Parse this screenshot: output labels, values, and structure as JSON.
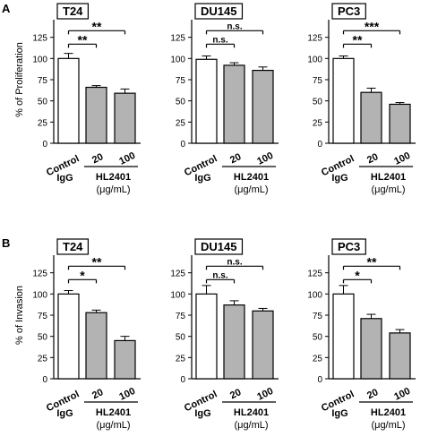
{
  "panel_labels": [
    "A",
    "B"
  ],
  "ylabels": [
    "% of Proliferation",
    "% of Invasion"
  ],
  "x_tick_labels": {
    "control": "Control",
    "igg": "IgG",
    "low": "20",
    "high": "100"
  },
  "group_label": "HL2401",
  "unit_label": "(μg/mL)",
  "chart_data": [
    {
      "type": "bar",
      "title": "T24",
      "categories": [
        "Control IgG",
        "20",
        "100"
      ],
      "values": [
        100,
        66,
        59
      ],
      "errors": [
        6,
        2,
        5
      ],
      "ylim": [
        0,
        150
      ],
      "yticks": [
        0,
        25,
        50,
        75,
        100,
        125
      ],
      "ylabel": "% of Proliferation",
      "significance": [
        {
          "from": "Control IgG",
          "to": "20",
          "label": "**"
        },
        {
          "from": "Control IgG",
          "to": "100",
          "label": "**"
        }
      ],
      "bar_colors": [
        "#ffffff",
        "#b3b3b3",
        "#b3b3b3"
      ]
    },
    {
      "type": "bar",
      "title": "DU145",
      "categories": [
        "Control IgG",
        "20",
        "100"
      ],
      "values": [
        99,
        92,
        86
      ],
      "errors": [
        4,
        3,
        4
      ],
      "ylim": [
        0,
        150
      ],
      "yticks": [
        0,
        25,
        50,
        75,
        100,
        125
      ],
      "ylabel": "",
      "significance": [
        {
          "from": "Control IgG",
          "to": "20",
          "label": "n.s."
        },
        {
          "from": "Control IgG",
          "to": "100",
          "label": "n.s."
        }
      ],
      "bar_colors": [
        "#ffffff",
        "#b3b3b3",
        "#b3b3b3"
      ]
    },
    {
      "type": "bar",
      "title": "PC3",
      "categories": [
        "Control IgG",
        "20",
        "100"
      ],
      "values": [
        100,
        60,
        46
      ],
      "errors": [
        3,
        5,
        2
      ],
      "ylim": [
        0,
        150
      ],
      "yticks": [
        0,
        25,
        50,
        75,
        100,
        125
      ],
      "ylabel": "",
      "significance": [
        {
          "from": "Control IgG",
          "to": "20",
          "label": "**"
        },
        {
          "from": "Control IgG",
          "to": "100",
          "label": "***"
        }
      ],
      "bar_colors": [
        "#ffffff",
        "#b3b3b3",
        "#b3b3b3"
      ]
    },
    {
      "type": "bar",
      "title": "T24",
      "categories": [
        "Control IgG",
        "20",
        "100"
      ],
      "values": [
        100,
        78,
        45
      ],
      "errors": [
        4,
        3,
        5
      ],
      "ylim": [
        0,
        150
      ],
      "yticks": [
        0,
        25,
        50,
        75,
        100,
        125
      ],
      "ylabel": "% of Invasion",
      "significance": [
        {
          "from": "Control IgG",
          "to": "20",
          "label": "*"
        },
        {
          "from": "Control IgG",
          "to": "100",
          "label": "**"
        }
      ],
      "bar_colors": [
        "#ffffff",
        "#b3b3b3",
        "#b3b3b3"
      ]
    },
    {
      "type": "bar",
      "title": "DU145",
      "categories": [
        "Control IgG",
        "20",
        "100"
      ],
      "values": [
        100,
        87,
        80
      ],
      "errors": [
        10,
        5,
        3
      ],
      "ylim": [
        0,
        150
      ],
      "yticks": [
        0,
        25,
        50,
        75,
        100,
        125
      ],
      "ylabel": "",
      "significance": [
        {
          "from": "Control IgG",
          "to": "20",
          "label": "n.s."
        },
        {
          "from": "Control IgG",
          "to": "100",
          "label": "n.s."
        }
      ],
      "bar_colors": [
        "#ffffff",
        "#b3b3b3",
        "#b3b3b3"
      ]
    },
    {
      "type": "bar",
      "title": "PC3",
      "categories": [
        "Control IgG",
        "20",
        "100"
      ],
      "values": [
        100,
        71,
        54
      ],
      "errors": [
        10,
        5,
        4
      ],
      "ylim": [
        0,
        150
      ],
      "yticks": [
        0,
        25,
        50,
        75,
        100,
        125
      ],
      "ylabel": "",
      "significance": [
        {
          "from": "Control IgG",
          "to": "20",
          "label": "*"
        },
        {
          "from": "Control IgG",
          "to": "100",
          "label": "**"
        }
      ],
      "bar_colors": [
        "#ffffff",
        "#b3b3b3",
        "#b3b3b3"
      ]
    }
  ]
}
